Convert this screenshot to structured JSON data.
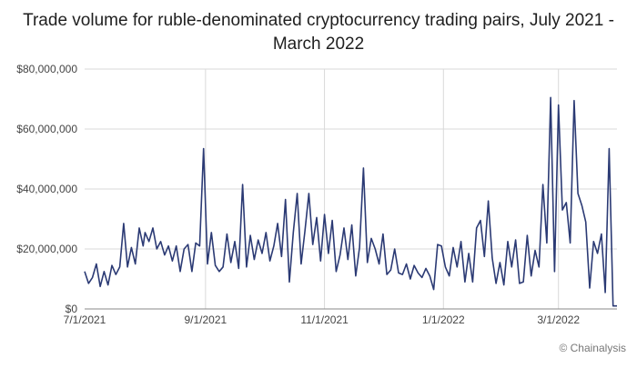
{
  "title_lines": [
    "Trade volume for ruble-denominated cryptocurrency trading pairs, July 2021 -",
    "March 2022"
  ],
  "credit": "© Chainalysis",
  "colors": {
    "line": "#2b3a74",
    "grid": "#d9d9d9",
    "axis": "#888888"
  },
  "chart_data": {
    "type": "line",
    "title": "Trade volume for ruble-denominated cryptocurrency trading pairs, July 2021 - March 2022",
    "xlabel": "",
    "ylabel": "",
    "ylim": [
      0,
      80000000
    ],
    "xlim": [
      "2021-07-01",
      "2022-03-31"
    ],
    "y_ticks": [
      0,
      20000000,
      40000000,
      60000000,
      80000000
    ],
    "y_tick_labels": [
      "$0",
      "$20,000,000",
      "$40,000,000",
      "$60,000,000",
      "$80,000,000"
    ],
    "x_ticks": [
      "2021-07-01",
      "2021-09-01",
      "2021-11-01",
      "2022-01-01",
      "2022-03-01"
    ],
    "x_tick_labels": [
      "7/1/2021",
      "9/1/2021",
      "11/1/2021",
      "1/1/2022",
      "3/1/2022"
    ],
    "grid": true,
    "series": [
      {
        "x": [
          "2021-07-01",
          "2021-07-03",
          "2021-07-05",
          "2021-07-07",
          "2021-07-09",
          "2021-07-11",
          "2021-07-13",
          "2021-07-15",
          "2021-07-17",
          "2021-07-19",
          "2021-07-21",
          "2021-07-23",
          "2021-07-25",
          "2021-07-27",
          "2021-07-29",
          "2021-07-31",
          "2021-08-01",
          "2021-08-03",
          "2021-08-05",
          "2021-08-07",
          "2021-08-09",
          "2021-08-11",
          "2021-08-13",
          "2021-08-15",
          "2021-08-17",
          "2021-08-19",
          "2021-08-21",
          "2021-08-23",
          "2021-08-25",
          "2021-08-27",
          "2021-08-29",
          "2021-08-31",
          "2021-09-02",
          "2021-09-04",
          "2021-09-06",
          "2021-09-08",
          "2021-09-10",
          "2021-09-12",
          "2021-09-14",
          "2021-09-16",
          "2021-09-18",
          "2021-09-20",
          "2021-09-22",
          "2021-09-24",
          "2021-09-26",
          "2021-09-28",
          "2021-09-30",
          "2021-10-02",
          "2021-10-04",
          "2021-10-06",
          "2021-10-08",
          "2021-10-10",
          "2021-10-12",
          "2021-10-14",
          "2021-10-16",
          "2021-10-18",
          "2021-10-20",
          "2021-10-22",
          "2021-10-24",
          "2021-10-26",
          "2021-10-28",
          "2021-10-30",
          "2021-11-01",
          "2021-11-03",
          "2021-11-05",
          "2021-11-07",
          "2021-11-09",
          "2021-11-11",
          "2021-11-13",
          "2021-11-15",
          "2021-11-17",
          "2021-11-19",
          "2021-11-21",
          "2021-11-23",
          "2021-11-25",
          "2021-11-27",
          "2021-11-29",
          "2021-12-01",
          "2021-12-03",
          "2021-12-05",
          "2021-12-07",
          "2021-12-09",
          "2021-12-11",
          "2021-12-13",
          "2021-12-15",
          "2021-12-17",
          "2021-12-19",
          "2021-12-21",
          "2021-12-23",
          "2021-12-25",
          "2021-12-27",
          "2021-12-29",
          "2021-12-31",
          "2022-01-02",
          "2022-01-04",
          "2022-01-06",
          "2022-01-08",
          "2022-01-10",
          "2022-01-12",
          "2022-01-14",
          "2022-01-16",
          "2022-01-18",
          "2022-01-20",
          "2022-01-22",
          "2022-01-24",
          "2022-01-26",
          "2022-01-28",
          "2022-01-30",
          "2022-02-01",
          "2022-02-03",
          "2022-02-05",
          "2022-02-07",
          "2022-02-09",
          "2022-02-11",
          "2022-02-13",
          "2022-02-15",
          "2022-02-17",
          "2022-02-19",
          "2022-02-21",
          "2022-02-23",
          "2022-02-25",
          "2022-02-27",
          "2022-03-01",
          "2022-03-03",
          "2022-03-05",
          "2022-03-07",
          "2022-03-09",
          "2022-03-11",
          "2022-03-13",
          "2022-03-15",
          "2022-03-17",
          "2022-03-19",
          "2022-03-21",
          "2022-03-23",
          "2022-03-25",
          "2022-03-27",
          "2022-03-29",
          "2022-03-31"
        ],
        "values": [
          12500000,
          8500000,
          10500000,
          15000000,
          7500000,
          12500000,
          8000000,
          14500000,
          11500000,
          14000000,
          28500000,
          14000000,
          20500000,
          15000000,
          27000000,
          21000000,
          25500000,
          22500000,
          27000000,
          20000000,
          22500000,
          18000000,
          21000000,
          16000000,
          21000000,
          12500000,
          20000000,
          21500000,
          12500000,
          22000000,
          21000000,
          53500000,
          15000000,
          25500000,
          14500000,
          12500000,
          14000000,
          25000000,
          15500000,
          22500000,
          13500000,
          41500000,
          14000000,
          24500000,
          16500000,
          23000000,
          18500000,
          25500000,
          16000000,
          21000000,
          28500000,
          17500000,
          36500000,
          9000000,
          25500000,
          38500000,
          15000000,
          26000000,
          38500000,
          21500000,
          30500000,
          16000000,
          31500000,
          18500000,
          29500000,
          12500000,
          18000000,
          27000000,
          16500000,
          28000000,
          11000000,
          20500000,
          47000000,
          15500000,
          23500000,
          20000000,
          15000000,
          25000000,
          11500000,
          13000000,
          20000000,
          12000000,
          11500000,
          15000000,
          10000000,
          14500000,
          12000000,
          10500000,
          13500000,
          11000000,
          6500000,
          21500000,
          21000000,
          14000000,
          11000000,
          20500000,
          14000000,
          22500000,
          9000000,
          18500000,
          9000000,
          27000000,
          29500000,
          17500000,
          36000000,
          17000000,
          8500000,
          15500000,
          8000000,
          22500000,
          14000000,
          23000000,
          8500000,
          9000000,
          24500000,
          11000000,
          19500000,
          14000000,
          41500000,
          22000000,
          70500000,
          12500000,
          68000000,
          33000000,
          35500000,
          22000000,
          69500000,
          38500000,
          34500000,
          29000000,
          7000000,
          22500000,
          18500000,
          25000000,
          5500000,
          53500000,
          1000000,
          1000000
        ]
      }
    ]
  }
}
